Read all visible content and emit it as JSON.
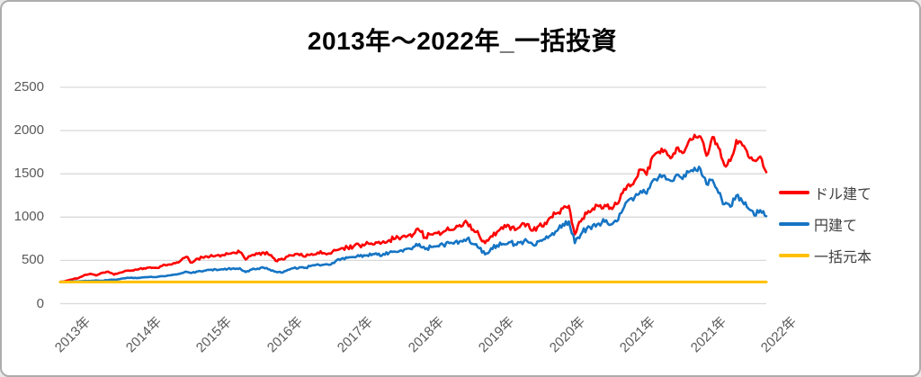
{
  "frame": {
    "background": "#ffffff",
    "border_color": "#adadad"
  },
  "chart_data": {
    "type": "line",
    "title": "2013年～2022年_一括投資",
    "x_tick_labels": [
      "2013年",
      "2014年",
      "2015年",
      "2016年",
      "2017年",
      "2018年",
      "2019年",
      "2020年",
      "2021年",
      "2021年",
      "2022年"
    ],
    "y_ticks": [
      2500,
      2000,
      1500,
      1000,
      500,
      0
    ],
    "y_tick_labels": [
      "2500",
      "2000",
      "1500",
      "1000",
      "500",
      "0"
    ],
    "ylim": [
      0,
      2500
    ],
    "grid": "horizontal-only",
    "gridline_color": "#d9d9d9",
    "axis_text_color": "#595959",
    "legend_position": "right",
    "note": "series values estimated from plot at ~monthly intervals, Jan 2013 - Nov 2022",
    "series": [
      {
        "name": "ドル建て",
        "color": "#ff0000",
        "values": [
          250,
          265,
          280,
          295,
          330,
          345,
          325,
          355,
          370,
          335,
          360,
          380,
          385,
          395,
          410,
          420,
          415,
          435,
          450,
          470,
          490,
          540,
          475,
          520,
          530,
          545,
          555,
          560,
          575,
          590,
          595,
          510,
          560,
          575,
          590,
          560,
          495,
          520,
          545,
          555,
          560,
          545,
          575,
          590,
          585,
          580,
          615,
          640,
          650,
          660,
          675,
          685,
          695,
          705,
          720,
          735,
          750,
          765,
          780,
          800,
          845,
          765,
          800,
          815,
          830,
          850,
          870,
          890,
          935,
          855,
          790,
          700,
          780,
          830,
          865,
          900,
          850,
          905,
          920,
          845,
          900,
          935,
          1000,
          1045,
          1100,
          1130,
          800,
          950,
          1040,
          1100,
          1125,
          1140,
          1110,
          1150,
          1280,
          1380,
          1420,
          1550,
          1490,
          1700,
          1755,
          1775,
          1680,
          1800,
          1740,
          1870,
          1950,
          1930,
          1710,
          1925,
          1800,
          1600,
          1650,
          1890,
          1830,
          1700,
          1655,
          1700,
          1520
        ]
      },
      {
        "name": "円建て",
        "color": "#1574c4",
        "values": [
          250,
          252,
          258,
          255,
          262,
          260,
          268,
          265,
          272,
          278,
          285,
          295,
          300,
          298,
          305,
          310,
          308,
          318,
          325,
          335,
          345,
          370,
          355,
          372,
          380,
          390,
          395,
          398,
          402,
          408,
          410,
          365,
          395,
          405,
          415,
          395,
          370,
          358,
          390,
          410,
          420,
          415,
          440,
          455,
          450,
          448,
          490,
          520,
          530,
          540,
          548,
          555,
          560,
          565,
          575,
          590,
          600,
          615,
          635,
          655,
          688,
          630,
          655,
          665,
          680,
          700,
          715,
          725,
          750,
          690,
          640,
          570,
          640,
          675,
          690,
          710,
          685,
          715,
          725,
          680,
          720,
          745,
          790,
          840,
          920,
          950,
          700,
          800,
          870,
          905,
          925,
          945,
          915,
          950,
          1080,
          1200,
          1230,
          1300,
          1270,
          1420,
          1460,
          1480,
          1420,
          1490,
          1440,
          1520,
          1570,
          1555,
          1380,
          1430,
          1280,
          1150,
          1120,
          1250,
          1180,
          1100,
          1020,
          1080,
          1010
        ]
      },
      {
        "name": "一括元本",
        "color": "#ffc000",
        "constant_value": 250
      }
    ]
  }
}
